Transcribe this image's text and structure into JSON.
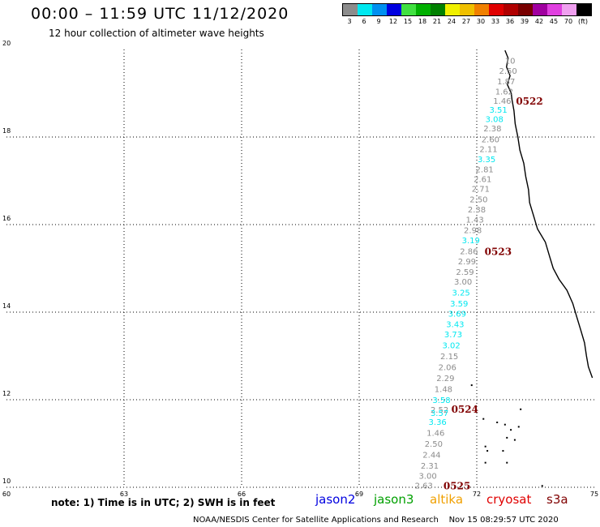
{
  "header": {
    "title": "00:00 – 11:59 UTC 11/12/2020",
    "subtitle": "12 hour collection of altimeter wave heights"
  },
  "legend": {
    "unit": "(ft)",
    "bins": [
      {
        "label": "3",
        "color": "#8c8c8c"
      },
      {
        "label": "6",
        "color": "#00e8f0"
      },
      {
        "label": "9",
        "color": "#0090f0"
      },
      {
        "label": "12",
        "color": "#0000e0"
      },
      {
        "label": "15",
        "color": "#40e040"
      },
      {
        "label": "18",
        "color": "#00b000"
      },
      {
        "label": "21",
        "color": "#008000"
      },
      {
        "label": "24",
        "color": "#f0f000"
      },
      {
        "label": "27",
        "color": "#f0c000"
      },
      {
        "label": "30",
        "color": "#f08000"
      },
      {
        "label": "33",
        "color": "#e00000"
      },
      {
        "label": "36",
        "color": "#b00000"
      },
      {
        "label": "39",
        "color": "#780000"
      },
      {
        "label": "42",
        "color": "#a000a0"
      },
      {
        "label": "45",
        "color": "#e040e0"
      },
      {
        "label": "70",
        "color": "#f0a0f0"
      },
      {
        "label": "",
        "color": "#000000"
      }
    ]
  },
  "axes": {
    "x_ticks": [
      "60",
      "63",
      "66",
      "69",
      "72",
      "75"
    ],
    "y_ticks": [
      "10",
      "12",
      "14",
      "16",
      "18",
      "20"
    ]
  },
  "chart_data": {
    "type": "scatter",
    "x_range": [
      60,
      75
    ],
    "y_range": [
      10,
      20
    ],
    "gray_color": "#8c8c8c",
    "cyan_color": "#00e8f0",
    "pass_label_color": "#800000",
    "points": [
      {
        "lon": 72.85,
        "lat": 19.75,
        "v": "10",
        "c": "gray"
      },
      {
        "lon": 72.8,
        "lat": 19.52,
        "v": "2.50",
        "c": "gray"
      },
      {
        "lon": 72.75,
        "lat": 19.28,
        "v": "1.87",
        "c": "gray"
      },
      {
        "lon": 72.7,
        "lat": 19.05,
        "v": "1.62",
        "c": "gray"
      },
      {
        "lon": 72.65,
        "lat": 18.83,
        "v": "1.46",
        "c": "gray"
      },
      {
        "lon": 72.55,
        "lat": 18.63,
        "v": "3.51",
        "c": "cyan"
      },
      {
        "lon": 72.45,
        "lat": 18.42,
        "v": "3.08",
        "c": "cyan"
      },
      {
        "lon": 72.4,
        "lat": 18.2,
        "v": "2.38",
        "c": "gray"
      },
      {
        "lon": 72.35,
        "lat": 17.95,
        "v": "2.60",
        "c": "gray"
      },
      {
        "lon": 72.3,
        "lat": 17.73,
        "v": "2.11",
        "c": "gray"
      },
      {
        "lon": 72.25,
        "lat": 17.5,
        "v": "3.35",
        "c": "cyan"
      },
      {
        "lon": 72.2,
        "lat": 17.27,
        "v": "2.81",
        "c": "gray"
      },
      {
        "lon": 72.15,
        "lat": 17.05,
        "v": "2.61",
        "c": "gray"
      },
      {
        "lon": 72.1,
        "lat": 16.82,
        "v": "2.71",
        "c": "gray"
      },
      {
        "lon": 72.05,
        "lat": 16.58,
        "v": "2.50",
        "c": "gray"
      },
      {
        "lon": 72.0,
        "lat": 16.35,
        "v": "2.38",
        "c": "gray"
      },
      {
        "lon": 71.95,
        "lat": 16.12,
        "v": "1.43",
        "c": "gray"
      },
      {
        "lon": 71.9,
        "lat": 15.88,
        "v": "2.98",
        "c": "gray"
      },
      {
        "lon": 71.85,
        "lat": 15.65,
        "v": "3.19",
        "c": "cyan"
      },
      {
        "lon": 71.8,
        "lat": 15.4,
        "v": "2.86",
        "c": "gray"
      },
      {
        "lon": 71.75,
        "lat": 15.17,
        "v": "2.99",
        "c": "gray"
      },
      {
        "lon": 71.7,
        "lat": 14.93,
        "v": "2.59",
        "c": "gray"
      },
      {
        "lon": 71.65,
        "lat": 14.7,
        "v": "3.00",
        "c": "gray"
      },
      {
        "lon": 71.6,
        "lat": 14.45,
        "v": "3.25",
        "c": "cyan"
      },
      {
        "lon": 71.55,
        "lat": 14.2,
        "v": "3.59",
        "c": "cyan"
      },
      {
        "lon": 71.5,
        "lat": 13.97,
        "v": "3.69",
        "c": "cyan"
      },
      {
        "lon": 71.45,
        "lat": 13.73,
        "v": "3.43",
        "c": "cyan"
      },
      {
        "lon": 71.4,
        "lat": 13.5,
        "v": "3.73",
        "c": "cyan"
      },
      {
        "lon": 71.35,
        "lat": 13.25,
        "v": "3.02",
        "c": "cyan"
      },
      {
        "lon": 71.3,
        "lat": 13.0,
        "v": "2.15",
        "c": "gray"
      },
      {
        "lon": 71.25,
        "lat": 12.75,
        "v": "2.06",
        "c": "gray"
      },
      {
        "lon": 71.2,
        "lat": 12.5,
        "v": "2.29",
        "c": "gray"
      },
      {
        "lon": 71.15,
        "lat": 12.25,
        "v": "1.48",
        "c": "gray"
      },
      {
        "lon": 71.1,
        "lat": 12.0,
        "v": "3.58",
        "c": "cyan"
      },
      {
        "lon": 71.05,
        "lat": 11.78,
        "v": "2.52",
        "c": "gray"
      },
      {
        "lon": 71.05,
        "lat": 11.7,
        "v": "3.57",
        "c": "cyan"
      },
      {
        "lon": 71.0,
        "lat": 11.5,
        "v": "3.36",
        "c": "cyan"
      },
      {
        "lon": 70.95,
        "lat": 11.25,
        "v": "1.46",
        "c": "gray"
      },
      {
        "lon": 70.9,
        "lat": 11.0,
        "v": "2.50",
        "c": "gray"
      },
      {
        "lon": 70.85,
        "lat": 10.75,
        "v": "2.44",
        "c": "gray"
      },
      {
        "lon": 70.8,
        "lat": 10.5,
        "v": "2.31",
        "c": "gray"
      },
      {
        "lon": 70.75,
        "lat": 10.27,
        "v": "3.00",
        "c": "gray"
      },
      {
        "lon": 70.65,
        "lat": 10.05,
        "v": "2.63",
        "c": "gray"
      }
    ],
    "pass_labels": [
      {
        "lon": 73.0,
        "lat": 18.83,
        "text": "0522"
      },
      {
        "lon": 72.2,
        "lat": 15.4,
        "text": "0523"
      },
      {
        "lon": 71.35,
        "lat": 11.8,
        "text": "0524"
      },
      {
        "lon": 71.15,
        "lat": 10.05,
        "text": "0525"
      }
    ],
    "coastline": [
      [
        72.72,
        19.98
      ],
      [
        72.8,
        19.8
      ],
      [
        72.76,
        19.6
      ],
      [
        72.85,
        19.4
      ],
      [
        72.78,
        19.2
      ],
      [
        72.88,
        19.0
      ],
      [
        72.9,
        18.85
      ],
      [
        72.95,
        18.6
      ],
      [
        72.98,
        18.3
      ],
      [
        73.05,
        18.0
      ],
      [
        73.1,
        17.7
      ],
      [
        73.2,
        17.4
      ],
      [
        73.25,
        17.1
      ],
      [
        73.32,
        16.8
      ],
      [
        73.35,
        16.5
      ],
      [
        73.45,
        16.2
      ],
      [
        73.55,
        15.9
      ],
      [
        73.75,
        15.6
      ],
      [
        73.85,
        15.3
      ],
      [
        73.95,
        15.0
      ],
      [
        74.1,
        14.75
      ],
      [
        74.3,
        14.5
      ],
      [
        74.45,
        14.2
      ],
      [
        74.55,
        13.9
      ],
      [
        74.65,
        13.6
      ],
      [
        74.75,
        13.3
      ],
      [
        74.8,
        13.0
      ],
      [
        74.85,
        12.75
      ],
      [
        74.95,
        12.5
      ]
    ],
    "islands": [
      [
        71.85,
        12.35
      ],
      [
        72.15,
        11.58
      ],
      [
        72.7,
        11.45
      ],
      [
        72.85,
        11.33
      ],
      [
        73.05,
        11.4
      ],
      [
        72.75,
        11.15
      ],
      [
        72.2,
        10.95
      ],
      [
        72.25,
        10.85
      ],
      [
        72.65,
        10.85
      ],
      [
        72.95,
        11.1
      ],
      [
        72.2,
        10.58
      ],
      [
        72.75,
        10.58
      ],
      [
        73.65,
        10.05
      ],
      [
        73.1,
        11.8
      ],
      [
        72.5,
        11.5
      ]
    ]
  },
  "note": "note: 1) Time is in UTC; 2) SWH is in feet",
  "satellites": [
    {
      "name": "jason2",
      "color": "#0000e0"
    },
    {
      "name": "jason3",
      "color": "#00a000"
    },
    {
      "name": "altika",
      "color": "#f0a000"
    },
    {
      "name": "cryosat",
      "color": "#e00000"
    },
    {
      "name": "s3a",
      "color": "#800000"
    }
  ],
  "footer": {
    "center": "NOAA/NESDIS Center for Satellite Applications and Research",
    "timestamp": "Nov 15 08:29:57 UTC 2020"
  }
}
